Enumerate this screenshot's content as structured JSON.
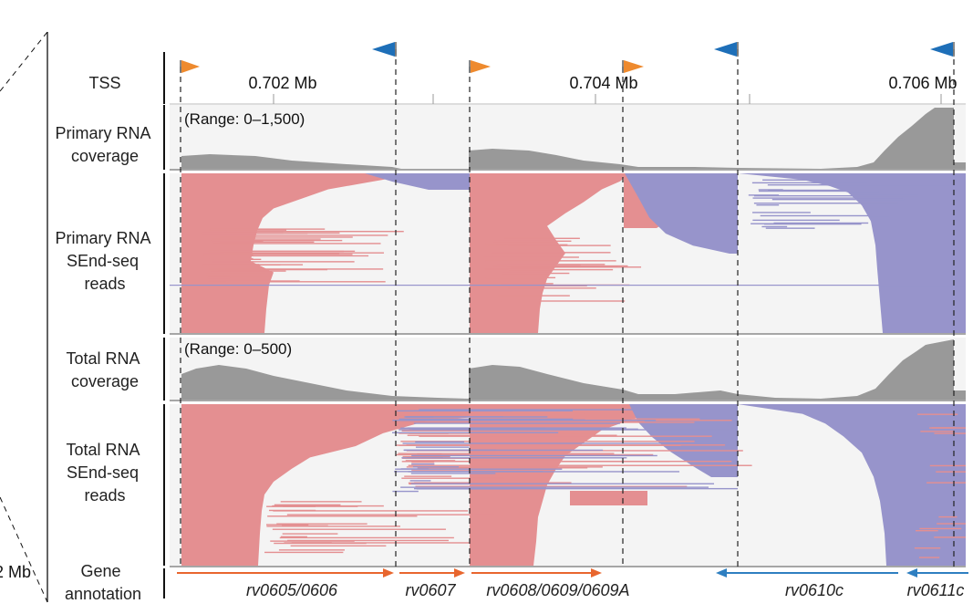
{
  "track_labels": {
    "tss": "TSS",
    "primary_cov": [
      "Primary RNA",
      "coverage"
    ],
    "primary_reads": [
      "Primary RNA",
      "SEnd-seq",
      "reads"
    ],
    "total_cov": [
      "Total RNA",
      "coverage"
    ],
    "total_reads": [
      "Total RNA",
      "SEnd-seq",
      "reads"
    ],
    "gene_annotation": [
      "Gene",
      "annotation"
    ]
  },
  "axis": {
    "ticks": [
      "0.702 Mb",
      "0.704 Mb",
      "0.706 Mb"
    ],
    "cut_label": "2 Mb"
  },
  "ranges": {
    "primary": "(Range: 0–1,500)",
    "total": "(Range: 0–500)"
  },
  "genes": [
    "rv0605/0606",
    "rv0607",
    "rv0608/0609/0609A",
    "rv0610c",
    "rv0611c"
  ],
  "colors": {
    "forward": "#e48f91",
    "reverse": "#9794cb",
    "coverage": "#999999",
    "tss_forward": "#ee8a2e",
    "tss_reverse": "#1e6fb8",
    "gene_forward": "#e8662e",
    "gene_reverse": "#2e7fc1",
    "panel_bg": "#f4f4f4"
  }
}
